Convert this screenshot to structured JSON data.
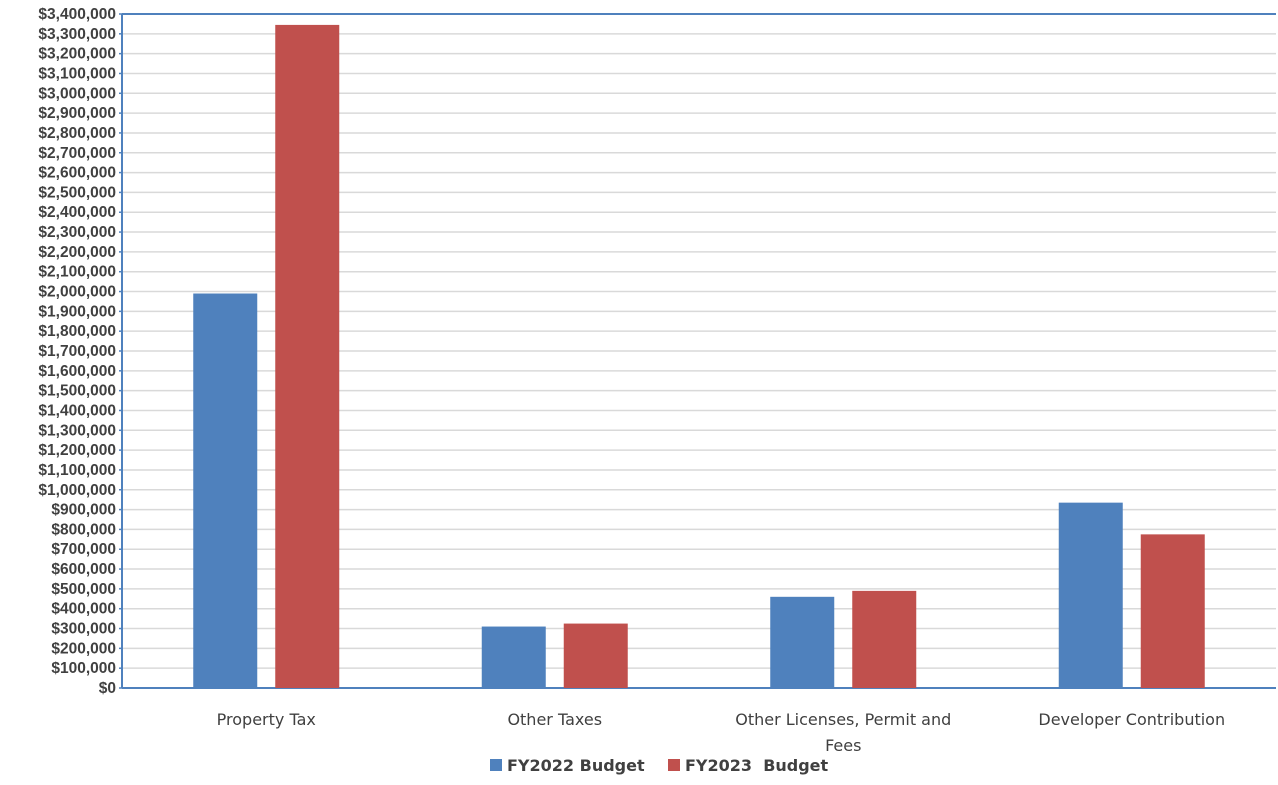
{
  "chart_data": {
    "type": "bar",
    "title": "",
    "xlabel": "",
    "ylabel": "",
    "categories": [
      [
        "Property Tax"
      ],
      [
        "Other Taxes"
      ],
      [
        "Other Licenses, Permit and",
        "Fees"
      ],
      [
        "Developer Contribution"
      ]
    ],
    "series": [
      {
        "name": "FY2022 Budget",
        "values": [
          1990000,
          310000,
          460000,
          935000
        ],
        "color": "#4F81BD"
      },
      {
        "name": "FY2023  Budget",
        "values": [
          3345000,
          325000,
          490000,
          775000
        ],
        "color": "#C0504D"
      }
    ],
    "ylim": [
      0,
      3400000
    ],
    "ytick_step": 100000,
    "ytick_labels": [
      "$0",
      "$100,000",
      "$200,000",
      "$300,000",
      "$400,000",
      "$500,000",
      "$600,000",
      "$700,000",
      "$800,000",
      "$900,000",
      "$1,000,000",
      "$1,100,000",
      "$1,200,000",
      "$1,300,000",
      "$1,400,000",
      "$1,500,000",
      "$1,600,000",
      "$1,700,000",
      "$1,800,000",
      "$1,900,000",
      "$2,000,000",
      "$2,100,000",
      "$2,200,000",
      "$2,300,000",
      "$2,400,000",
      "$2,500,000",
      "$2,600,000",
      "$2,700,000",
      "$2,800,000",
      "$2,900,000",
      "$3,000,000",
      "$3,100,000",
      "$3,200,000",
      "$3,300,000",
      "$3,400,000"
    ],
    "grid": true,
    "legend": "bottom-center",
    "grid_color": "#D9D9D9",
    "axis_color": "#4F81BD"
  }
}
